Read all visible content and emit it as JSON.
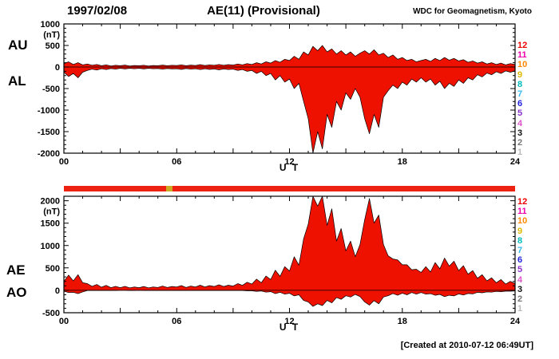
{
  "header": {
    "date": "1997/02/08",
    "title": "AE(11) (Provisional)",
    "source": "WDC for Geomagnetism, Kyoto"
  },
  "footer": {
    "created": "[Created at 2010-07-12 06:49UT]"
  },
  "colors": {
    "fill": "#ee1100",
    "outline": "#000000",
    "bar": "#ee2211",
    "bar_mark": "#ccaa22"
  },
  "bar": {
    "mark_start_hour": 5.45,
    "mark_end_hour": 5.8
  },
  "station_scale": [
    {
      "n": "12",
      "color": "#ee0000"
    },
    {
      "n": "11",
      "color": "#ee00aa"
    },
    {
      "n": "10",
      "color": "#ff8800"
    },
    {
      "n": "9",
      "color": "#ddbb00"
    },
    {
      "n": "8",
      "color": "#00bbbb"
    },
    {
      "n": "7",
      "color": "#33bbee"
    },
    {
      "n": "6",
      "color": "#2222dd"
    },
    {
      "n": "5",
      "color": "#8833cc"
    },
    {
      "n": "4",
      "color": "#dd55cc"
    },
    {
      "n": "3",
      "color": "#111111"
    },
    {
      "n": "2",
      "color": "#777777"
    },
    {
      "n": "1",
      "color": "#bbbbbb"
    }
  ],
  "chart_data": [
    {
      "type": "area",
      "panel": "AU-AL",
      "title": "AE(11) (Provisional) 1997/02/08 upper panel",
      "xlabel": "U T",
      "unit": "(nT)",
      "x_start": 0,
      "x_step_hours": 0.25,
      "xlim": [
        0,
        24
      ],
      "ylim": [
        -2000,
        1000
      ],
      "ytick_values": [
        1000,
        500,
        0,
        -500,
        -1000,
        -1500,
        -2000
      ],
      "ytick_labels": [
        "1000",
        "500",
        "0",
        "-500",
        "-1000",
        "-1500",
        "-2000"
      ],
      "xtick_values": [
        0,
        6,
        12,
        18,
        24
      ],
      "xtick_labels": [
        "00",
        "06",
        "12",
        "18",
        "24"
      ],
      "series": [
        {
          "name": "AU",
          "values": [
            80,
            120,
            60,
            100,
            50,
            70,
            40,
            60,
            30,
            50,
            25,
            40,
            30,
            45,
            25,
            35,
            30,
            40,
            25,
            35,
            30,
            45,
            30,
            40,
            35,
            50,
            30,
            45,
            35,
            55,
            35,
            50,
            40,
            60,
            40,
            55,
            45,
            70,
            50,
            80,
            60,
            100,
            70,
            120,
            90,
            150,
            110,
            180,
            150,
            250,
            180,
            350,
            280,
            480,
            380,
            500,
            350,
            420,
            300,
            380,
            280,
            350,
            250,
            320,
            380,
            300,
            400,
            280,
            320,
            220,
            280,
            180,
            220,
            150,
            180,
            120,
            150,
            180,
            130,
            200,
            150,
            220,
            160,
            200,
            140,
            170,
            110,
            140,
            90,
            120,
            70,
            100,
            60,
            90,
            50,
            80,
            60
          ]
        },
        {
          "name": "AL",
          "values": [
            -120,
            -220,
            -150,
            -250,
            -120,
            -80,
            -50,
            -70,
            -40,
            -60,
            -35,
            -50,
            -30,
            -45,
            -30,
            -40,
            -30,
            -45,
            -30,
            -40,
            -35,
            -50,
            -35,
            -45,
            -40,
            -55,
            -35,
            -50,
            -40,
            -60,
            -40,
            -55,
            -45,
            -65,
            -45,
            -60,
            -50,
            -80,
            -60,
            -100,
            -80,
            -150,
            -100,
            -200,
            -150,
            -300,
            -200,
            -350,
            -280,
            -500,
            -380,
            -800,
            -1200,
            -2000,
            -1500,
            -1900,
            -1100,
            -1400,
            -800,
            -1000,
            -600,
            -750,
            -500,
            -700,
            -1200,
            -1550,
            -1100,
            -1400,
            -700,
            -550,
            -420,
            -500,
            -350,
            -420,
            -280,
            -350,
            -250,
            -350,
            -280,
            -420,
            -330,
            -500,
            -380,
            -450,
            -300,
            -380,
            -250,
            -300,
            -180,
            -230,
            -140,
            -180,
            -110,
            -150,
            -90,
            -120,
            -90
          ]
        }
      ]
    },
    {
      "type": "area",
      "panel": "AE-AO",
      "title": "AE(11) (Provisional) 1997/02/08 lower panel",
      "xlabel": "U T",
      "unit": "(nT)",
      "x_start": 0,
      "x_step_hours": 0.25,
      "xlim": [
        0,
        24
      ],
      "ylim": [
        -500,
        2000
      ],
      "ytick_values": [
        2000,
        1500,
        1000,
        500,
        0,
        -500
      ],
      "ytick_labels": [
        "2000",
        "1500",
        "1000",
        "500",
        "0",
        "-500"
      ],
      "xtick_values": [
        0,
        6,
        12,
        18,
        24
      ],
      "xtick_labels": [
        "00",
        "06",
        "12",
        "18",
        "24"
      ],
      "series": [
        {
          "name": "AE",
          "values": [
            200,
            340,
            210,
            350,
            170,
            150,
            90,
            130,
            70,
            110,
            60,
            90,
            60,
            90,
            55,
            75,
            60,
            85,
            55,
            75,
            65,
            95,
            65,
            85,
            75,
            105,
            65,
            95,
            75,
            115,
            75,
            105,
            85,
            125,
            85,
            115,
            95,
            150,
            110,
            180,
            140,
            250,
            170,
            320,
            240,
            450,
            310,
            530,
            430,
            750,
            560,
            1150,
            1480,
            2300,
            1880,
            2250,
            1450,
            1820,
            1100,
            1380,
            880,
            1100,
            750,
            1020,
            1580,
            2050,
            1500,
            1680,
            1020,
            770,
            700,
            680,
            570,
            570,
            460,
            470,
            400,
            530,
            410,
            620,
            480,
            720,
            540,
            650,
            440,
            550,
            360,
            440,
            270,
            350,
            210,
            280,
            170,
            240,
            140,
            200,
            150
          ]
        },
        {
          "name": "AO",
          "values": [
            -20,
            -50,
            -45,
            -75,
            -35,
            -5,
            -5,
            -5,
            -5,
            -5,
            -5,
            -5,
            0,
            0,
            -3,
            -3,
            0,
            -3,
            -3,
            -3,
            -3,
            -3,
            -3,
            -3,
            -3,
            -3,
            -3,
            -3,
            -3,
            -3,
            -3,
            -3,
            -3,
            -3,
            -3,
            -3,
            -3,
            -5,
            -5,
            -10,
            -10,
            -25,
            -15,
            -40,
            -30,
            -75,
            -45,
            -85,
            -65,
            -125,
            -100,
            -225,
            -260,
            -360,
            -300,
            -340,
            -225,
            -280,
            -160,
            -200,
            -120,
            -150,
            -90,
            -140,
            -260,
            -330,
            -230,
            -300,
            -150,
            -120,
            -70,
            -110,
            -65,
            -100,
            -50,
            -85,
            -50,
            -85,
            -75,
            -110,
            -90,
            -140,
            -110,
            -125,
            -80,
            -105,
            -70,
            -80,
            -45,
            -55,
            -35,
            -40,
            -25,
            -30,
            -20,
            -20,
            -15
          ]
        }
      ]
    }
  ]
}
